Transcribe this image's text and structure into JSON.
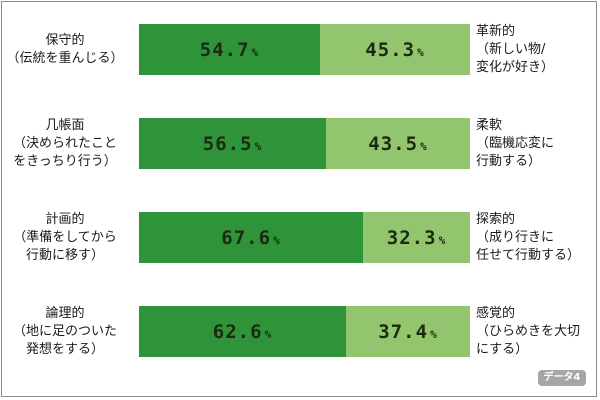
{
  "chart_data": {
    "type": "bar",
    "stacked": true,
    "orientation": "horizontal",
    "percent_unit": "%",
    "categories": [
      "保守的 vs 革新的",
      "几帳面 vs 柔軟",
      "計画的 vs 探索的",
      "論理的 vs 感覚的"
    ],
    "series": [
      {
        "values": [
          54.7,
          56.5,
          67.6,
          62.6
        ]
      },
      {
        "values": [
          45.3,
          43.5,
          32.3,
          37.4
        ]
      }
    ],
    "rows": [
      {
        "left_lines": [
          "保守的",
          "（伝統を重んじる）"
        ],
        "right_lines": [
          "革新的",
          "（新しい物/",
          "変化が好き）"
        ],
        "left_value": 54.7,
        "right_value": 45.3
      },
      {
        "left_lines": [
          "几帳面",
          "（決められたこと",
          "をきっちり行う）"
        ],
        "right_lines": [
          "柔軟",
          "（臨機応変に",
          "行動する）"
        ],
        "left_value": 56.5,
        "right_value": 43.5
      },
      {
        "left_lines": [
          "計画的",
          "（準備をしてから",
          "行動に移す）"
        ],
        "right_lines": [
          "探索的",
          "（成り行きに",
          "任せて行動する）"
        ],
        "left_value": 67.6,
        "right_value": 32.3
      },
      {
        "left_lines": [
          "論理的",
          "（地に足のついた",
          "発想をする）"
        ],
        "right_lines": [
          "感覚的",
          "（ひらめきを大切",
          "にする）"
        ],
        "left_value": 62.6,
        "right_value": 37.4
      }
    ],
    "xlim": [
      0,
      100
    ]
  },
  "colors": {
    "left_bar": "#2e9339",
    "right_bar": "#93c56e",
    "badge": "#a6a6a6"
  },
  "badge_label": "データ4"
}
